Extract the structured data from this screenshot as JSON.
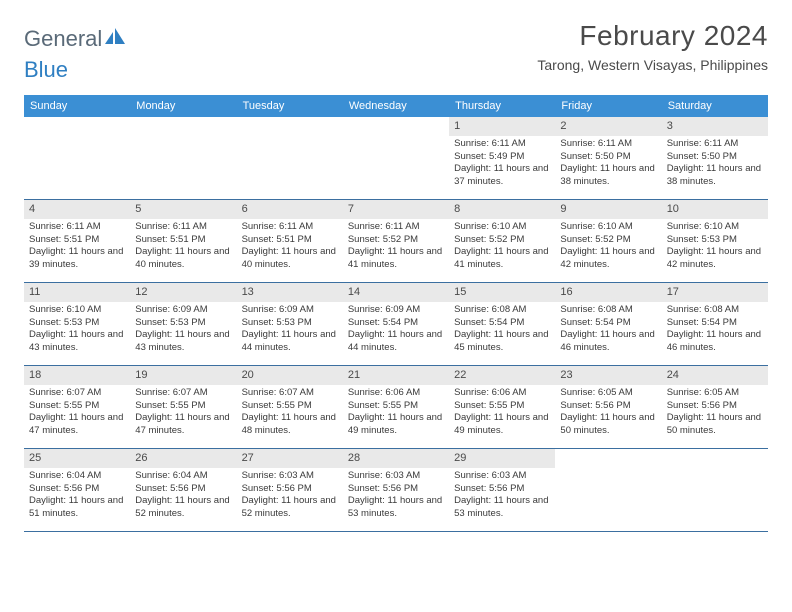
{
  "brand": {
    "part1": "General",
    "part2": "Blue"
  },
  "title": "February 2024",
  "location": "Tarong, Western Visayas, Philippines",
  "colors": {
    "header_bar": "#3b8fd4",
    "header_text": "#ffffff",
    "daynum_bg": "#e9e9e9",
    "week_divider": "#3b6fa0",
    "brand_grey": "#5a6a78",
    "brand_blue": "#2f7fc2",
    "text": "#3a3a3a"
  },
  "dow": [
    "Sunday",
    "Monday",
    "Tuesday",
    "Wednesday",
    "Thursday",
    "Friday",
    "Saturday"
  ],
  "weeks": [
    [
      null,
      null,
      null,
      null,
      {
        "d": "1",
        "sr": "6:11 AM",
        "ss": "5:49 PM",
        "dl": "11 hours and 37 minutes."
      },
      {
        "d": "2",
        "sr": "6:11 AM",
        "ss": "5:50 PM",
        "dl": "11 hours and 38 minutes."
      },
      {
        "d": "3",
        "sr": "6:11 AM",
        "ss": "5:50 PM",
        "dl": "11 hours and 38 minutes."
      }
    ],
    [
      {
        "d": "4",
        "sr": "6:11 AM",
        "ss": "5:51 PM",
        "dl": "11 hours and 39 minutes."
      },
      {
        "d": "5",
        "sr": "6:11 AM",
        "ss": "5:51 PM",
        "dl": "11 hours and 40 minutes."
      },
      {
        "d": "6",
        "sr": "6:11 AM",
        "ss": "5:51 PM",
        "dl": "11 hours and 40 minutes."
      },
      {
        "d": "7",
        "sr": "6:11 AM",
        "ss": "5:52 PM",
        "dl": "11 hours and 41 minutes."
      },
      {
        "d": "8",
        "sr": "6:10 AM",
        "ss": "5:52 PM",
        "dl": "11 hours and 41 minutes."
      },
      {
        "d": "9",
        "sr": "6:10 AM",
        "ss": "5:52 PM",
        "dl": "11 hours and 42 minutes."
      },
      {
        "d": "10",
        "sr": "6:10 AM",
        "ss": "5:53 PM",
        "dl": "11 hours and 42 minutes."
      }
    ],
    [
      {
        "d": "11",
        "sr": "6:10 AM",
        "ss": "5:53 PM",
        "dl": "11 hours and 43 minutes."
      },
      {
        "d": "12",
        "sr": "6:09 AM",
        "ss": "5:53 PM",
        "dl": "11 hours and 43 minutes."
      },
      {
        "d": "13",
        "sr": "6:09 AM",
        "ss": "5:53 PM",
        "dl": "11 hours and 44 minutes."
      },
      {
        "d": "14",
        "sr": "6:09 AM",
        "ss": "5:54 PM",
        "dl": "11 hours and 44 minutes."
      },
      {
        "d": "15",
        "sr": "6:08 AM",
        "ss": "5:54 PM",
        "dl": "11 hours and 45 minutes."
      },
      {
        "d": "16",
        "sr": "6:08 AM",
        "ss": "5:54 PM",
        "dl": "11 hours and 46 minutes."
      },
      {
        "d": "17",
        "sr": "6:08 AM",
        "ss": "5:54 PM",
        "dl": "11 hours and 46 minutes."
      }
    ],
    [
      {
        "d": "18",
        "sr": "6:07 AM",
        "ss": "5:55 PM",
        "dl": "11 hours and 47 minutes."
      },
      {
        "d": "19",
        "sr": "6:07 AM",
        "ss": "5:55 PM",
        "dl": "11 hours and 47 minutes."
      },
      {
        "d": "20",
        "sr": "6:07 AM",
        "ss": "5:55 PM",
        "dl": "11 hours and 48 minutes."
      },
      {
        "d": "21",
        "sr": "6:06 AM",
        "ss": "5:55 PM",
        "dl": "11 hours and 49 minutes."
      },
      {
        "d": "22",
        "sr": "6:06 AM",
        "ss": "5:55 PM",
        "dl": "11 hours and 49 minutes."
      },
      {
        "d": "23",
        "sr": "6:05 AM",
        "ss": "5:56 PM",
        "dl": "11 hours and 50 minutes."
      },
      {
        "d": "24",
        "sr": "6:05 AM",
        "ss": "5:56 PM",
        "dl": "11 hours and 50 minutes."
      }
    ],
    [
      {
        "d": "25",
        "sr": "6:04 AM",
        "ss": "5:56 PM",
        "dl": "11 hours and 51 minutes."
      },
      {
        "d": "26",
        "sr": "6:04 AM",
        "ss": "5:56 PM",
        "dl": "11 hours and 52 minutes."
      },
      {
        "d": "27",
        "sr": "6:03 AM",
        "ss": "5:56 PM",
        "dl": "11 hours and 52 minutes."
      },
      {
        "d": "28",
        "sr": "6:03 AM",
        "ss": "5:56 PM",
        "dl": "11 hours and 53 minutes."
      },
      {
        "d": "29",
        "sr": "6:03 AM",
        "ss": "5:56 PM",
        "dl": "11 hours and 53 minutes."
      },
      null,
      null
    ]
  ],
  "labels": {
    "sunrise": "Sunrise:",
    "sunset": "Sunset:",
    "daylight": "Daylight:"
  }
}
